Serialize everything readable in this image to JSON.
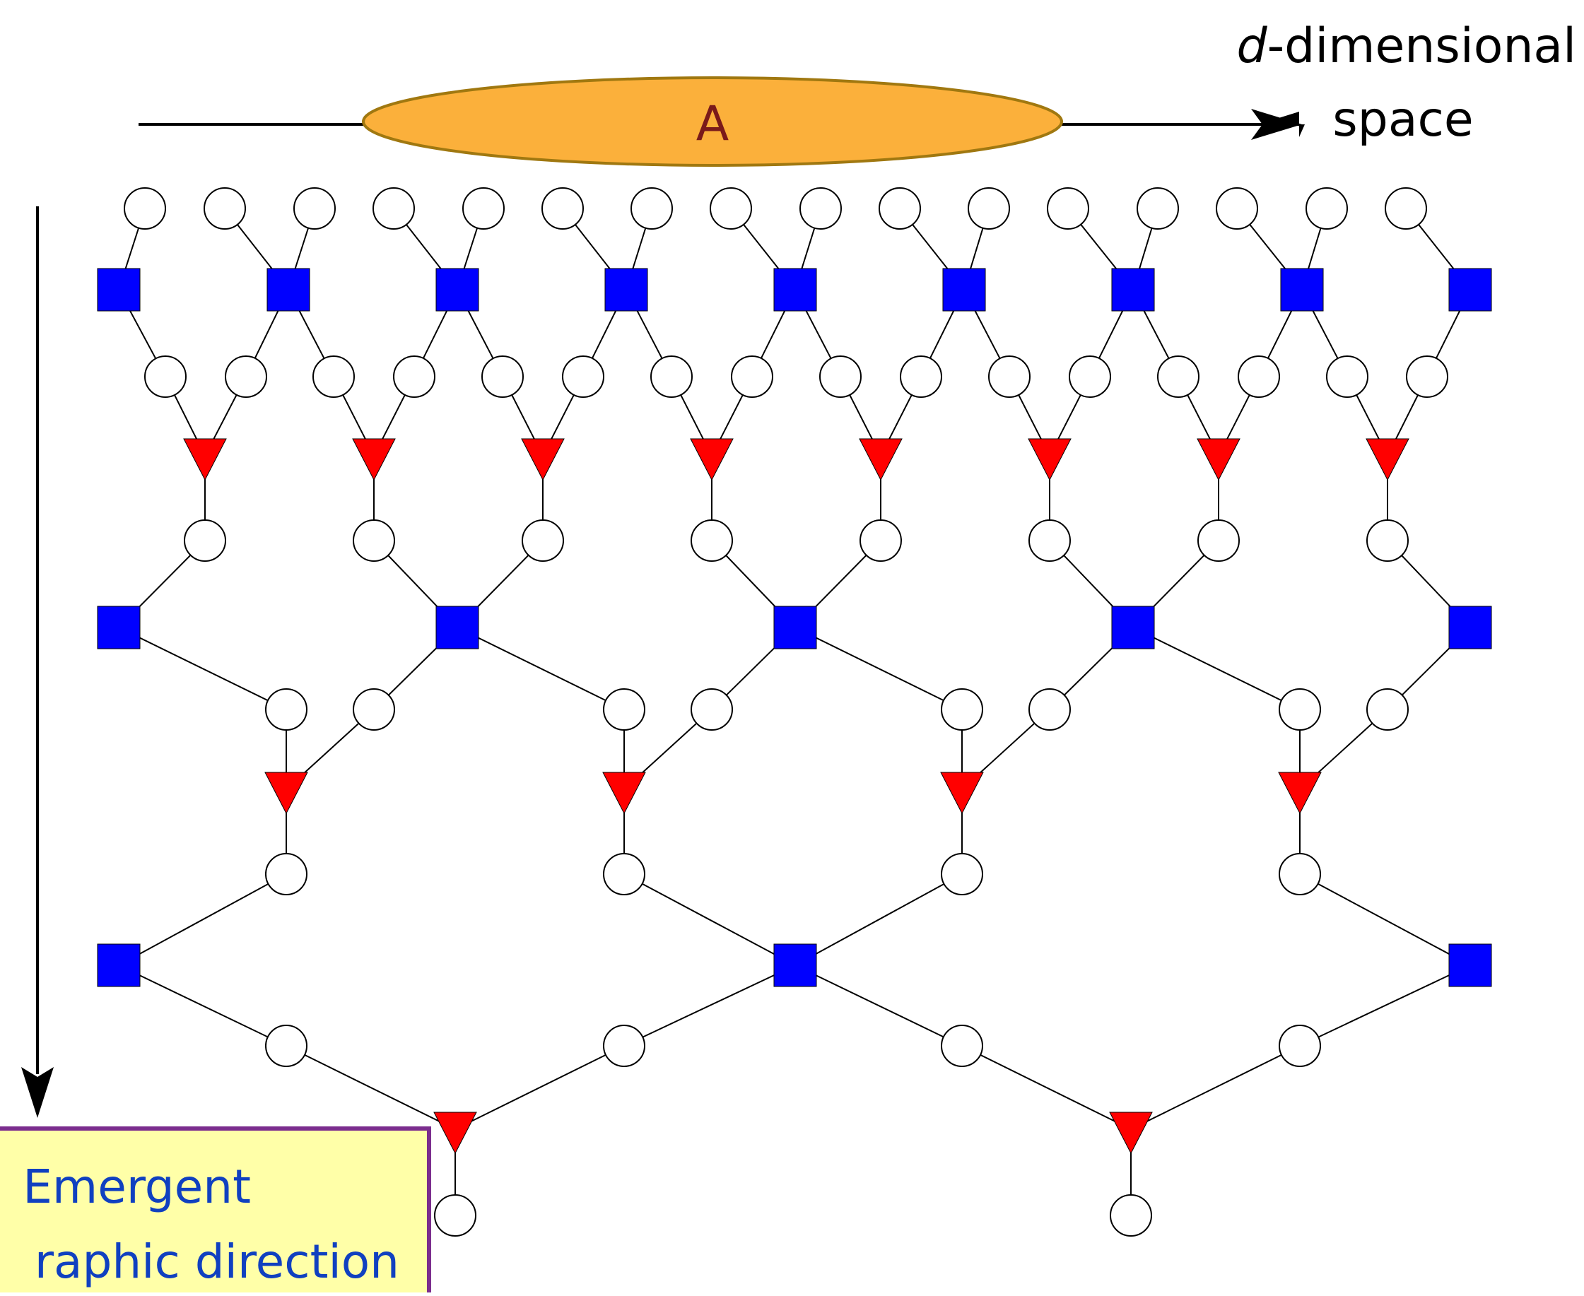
{
  "title": {
    "italic_part": "d",
    "rest": "-dimensional",
    "line2": "space"
  },
  "region_label": "A",
  "callout": {
    "line1": "Emergent",
    "line2": "raphic direction"
  },
  "colors": {
    "disentangler": "#0000ff",
    "isometry": "#ff0000",
    "region_fill": "#fbb03b",
    "region_stroke": "#a07810",
    "region_text": "#7a1a1a",
    "callout_fill": "#ffffa8",
    "callout_border": "#7b2d8e",
    "callout_text": "#1040c0"
  },
  "legend_semantics": {
    "square": "disentangler",
    "triangle": "isometry",
    "circle": "site"
  }
}
